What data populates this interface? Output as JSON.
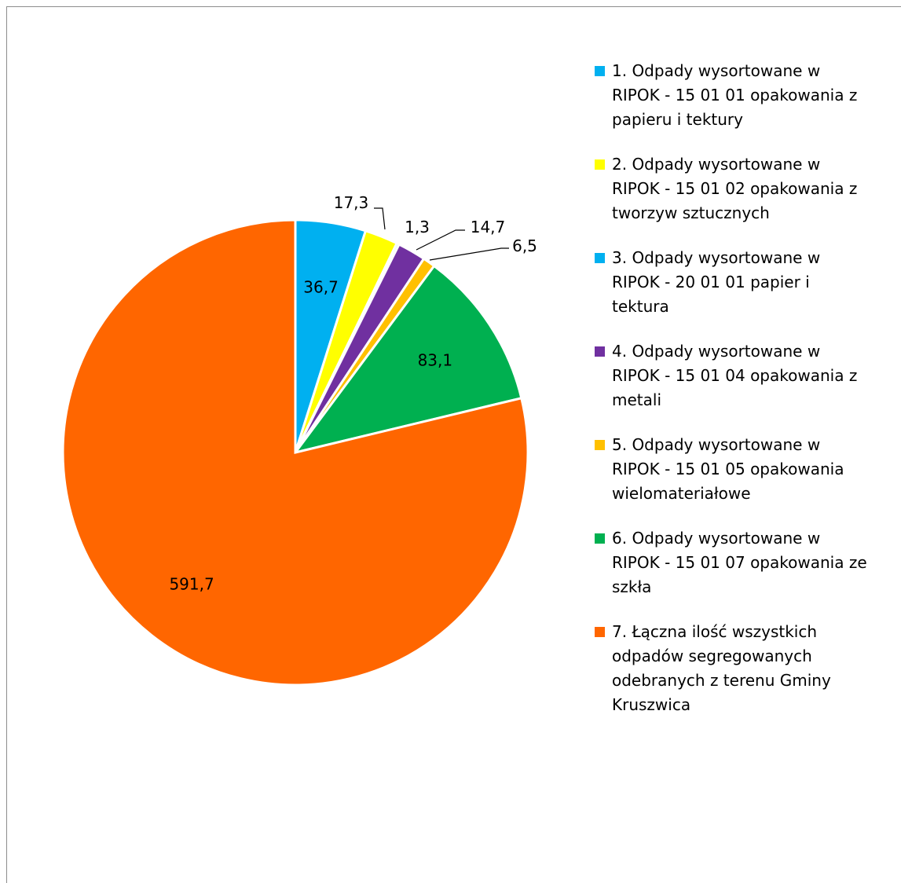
{
  "chart_data": {
    "type": "pie",
    "title": "",
    "slices": [
      {
        "label": "1. Odpady wysortowane w RIPOK - 15 01 01 opakowania z papieru i tektury",
        "legend_lines": "1. Odpady wysortowane w\nRIPOK - 15 01 01 opakowania z\npapieru i tektury",
        "value": 36.7,
        "value_label": "36,7",
        "color": "#00b0f0"
      },
      {
        "label": "2. Odpady wysortowane w RIPOK - 15 01 02 opakowania z tworzyw sztucznych",
        "legend_lines": "2. Odpady wysortowane w\nRIPOK - 15 01 02 opakowania z\ntworzyw sztucznych",
        "value": 17.3,
        "value_label": "17,3",
        "color": "#ffff00"
      },
      {
        "label": "3. Odpady wysortowane w RIPOK - 20 01 01 papier i tektura",
        "legend_lines": "3. Odpady wysortowane w\nRIPOK - 20 01 01 papier i\ntektura",
        "value": 1.3,
        "value_label": "1,3",
        "color": "#00b0f0"
      },
      {
        "label": "4. Odpady wysortowane w RIPOK - 15 01 04 opakowania z metali",
        "legend_lines": "4. Odpady wysortowane w\nRIPOK - 15 01 04 opakowania z\nmetali",
        "value": 14.7,
        "value_label": "14,7",
        "color": "#7030a0"
      },
      {
        "label": "5. Odpady wysortowane w RIPOK - 15 01 05 opakowania wielomateriałowe",
        "legend_lines": "5. Odpady wysortowane w\nRIPOK - 15 01 05 opakowania\nwielomateriałowe",
        "value": 6.5,
        "value_label": "6,5",
        "color": "#ffc000"
      },
      {
        "label": "6. Odpady wysortowane w RIPOK - 15 01 07 opakowania ze szkła",
        "legend_lines": "6. Odpady wysortowane w\nRIPOK - 15 01 07 opakowania ze\nszkła",
        "value": 83.1,
        "value_label": "83,1",
        "color": "#00b050"
      },
      {
        "label": "7. Łączna ilość wszystkich odpadów segregowanych odebranych z terenu Gminy Kruszwica",
        "legend_lines": "7. Łączna ilość wszystkich\nodpadów segregowanych\nodebranych z terenu Gminy\nKruszwica",
        "value": 591.7,
        "value_label": "591,7",
        "color": "#ff6600"
      }
    ],
    "legend_position": "right",
    "start_angle": "12 o'clock",
    "direction": "clockwise"
  }
}
